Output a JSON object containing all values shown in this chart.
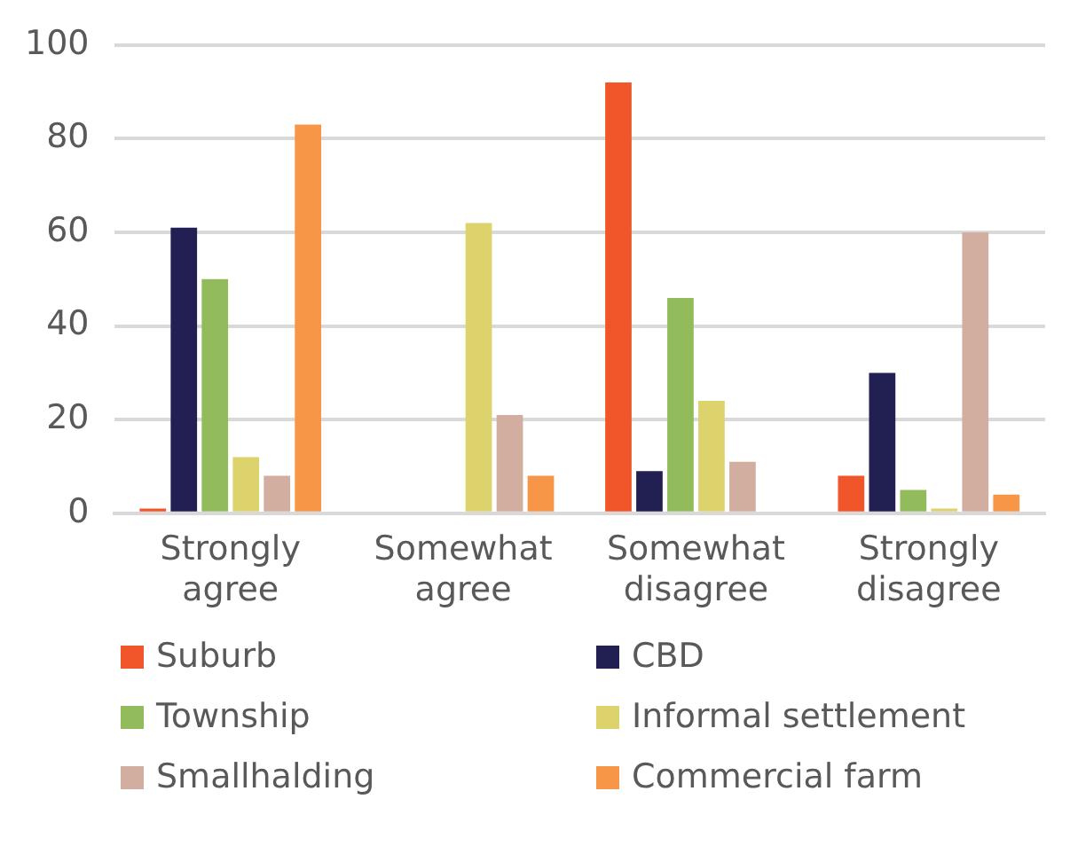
{
  "chart_data": {
    "type": "bar",
    "categories": [
      "Strongly agree",
      "Somewhat agree",
      "Somewhat disagree",
      "Strongly disagree"
    ],
    "series": [
      {
        "name": "Suburb",
        "color": "#f0562a",
        "values": [
          1,
          0,
          92,
          8
        ]
      },
      {
        "name": "CBD",
        "color": "#221f52",
        "values": [
          61,
          0,
          9,
          30
        ]
      },
      {
        "name": "Township",
        "color": "#92bb5c",
        "values": [
          50,
          0,
          46,
          5
        ]
      },
      {
        "name": "Informal settlement",
        "color": "#dcd36c",
        "values": [
          12,
          62,
          24,
          1
        ]
      },
      {
        "name": "Smallhalding",
        "color": "#d2aea0",
        "values": [
          8,
          21,
          11,
          60
        ]
      },
      {
        "name": "Commercial farm",
        "color": "#f79646",
        "values": [
          83,
          8,
          0,
          4
        ]
      }
    ],
    "ylim": [
      0,
      100
    ],
    "yticks": [
      0,
      20,
      40,
      60,
      80,
      100
    ],
    "grid": "y",
    "legend": "bottom"
  }
}
